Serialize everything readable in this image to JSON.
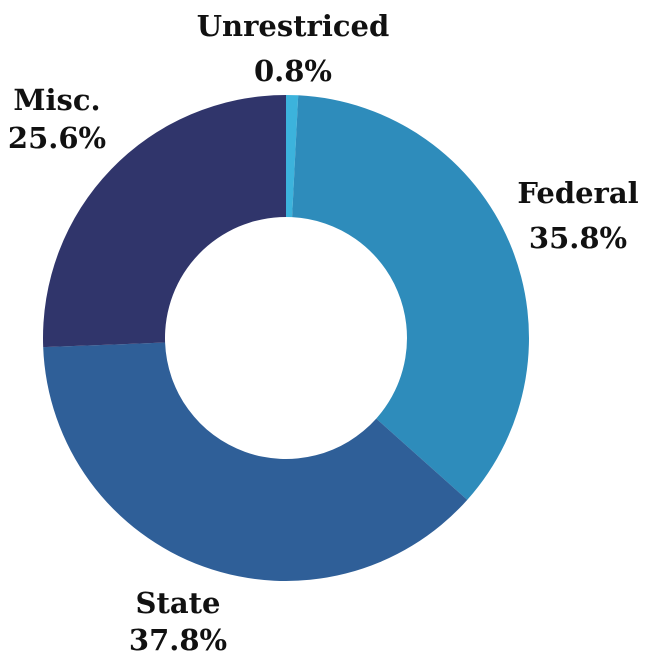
{
  "chart_data": {
    "type": "donut",
    "categories": [
      "Unrestriced",
      "Federal",
      "State",
      "Misc."
    ],
    "values": [
      0.8,
      35.8,
      37.8,
      25.6
    ],
    "value_labels": [
      "0.8%",
      "35.8%",
      "37.8%",
      "25.6%"
    ],
    "colors": [
      "#3cb3dc",
      "#2e8cbb",
      "#2f5f98",
      "#30356b"
    ]
  }
}
